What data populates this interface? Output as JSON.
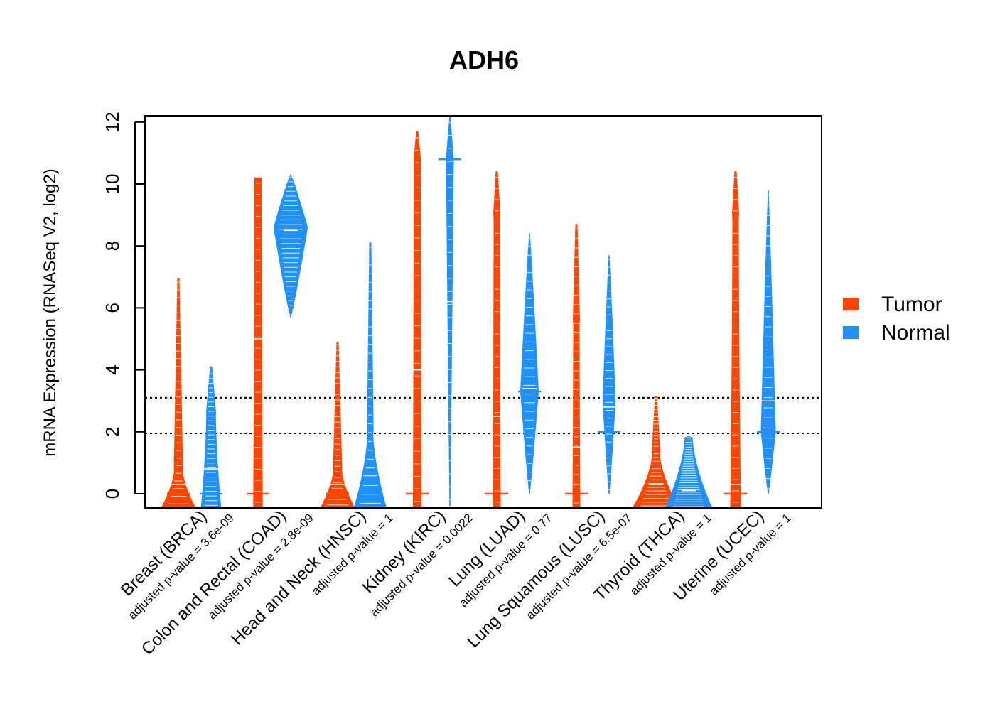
{
  "chart_data": {
    "type": "beanplot",
    "title": "ADH6",
    "xlabel": "",
    "ylabel": "mRNA Expression (RNASeq V2, log2)",
    "ylim": [
      -0.5,
      12.2
    ],
    "yticks": [
      0,
      2,
      4,
      6,
      8,
      10,
      12
    ],
    "grid": false,
    "legend_position": "right",
    "reference_lines": [
      1.95,
      3.1
    ],
    "series": [
      {
        "name": "Tumor",
        "color": "#FF4500"
      },
      {
        "name": "Normal",
        "color": "#1E90FF"
      }
    ],
    "groups": [
      {
        "label": "Breast (BRCA)",
        "pvalue_text": "adjusted p-value = 3.6e-09",
        "tumor": {
          "median": 0.0,
          "mean": 0.3,
          "max": 6.95,
          "bulk_top": 0.8,
          "bulk_width": 0.95,
          "tail_width": 0.22
        },
        "normal": {
          "median": 0.0,
          "mean": 0.8,
          "max": 4.1,
          "bulk_top": 2.6,
          "bulk_width": 0.55,
          "tail_width": 0.25
        }
      },
      {
        "label": "Colon and Rectal (COAD)",
        "pvalue_text": "adjusted p-value = 2.8e-09",
        "tumor": {
          "median": 0.0,
          "mean": 5.0,
          "max": 10.2,
          "bulk_top": 10.2,
          "bulk_width": 0.25,
          "tail_width": 0.18
        },
        "normal": {
          "median": 8.4,
          "mean": 8.5,
          "min": 5.7,
          "max": 10.3,
          "peak": 8.6,
          "bulk_width": 0.95
        }
      },
      {
        "label": "Head and Neck (HNSC)",
        "pvalue_text": "adjusted p-value = 1",
        "tumor": {
          "median": 0.0,
          "mean": 0.3,
          "max": 4.9,
          "bulk_top": 0.8,
          "bulk_width": 0.95,
          "tail_width": 0.22
        },
        "normal": {
          "median": 0.0,
          "mean": 0.6,
          "max": 8.1,
          "bulk_top": 2.0,
          "bulk_width": 0.9,
          "tail_width": 0.14
        }
      },
      {
        "label": "Kidney (KIRC)",
        "pvalue_text": "adjusted p-value = 0.0022",
        "tumor": {
          "median": 0.0,
          "mean": 4.0,
          "max": 11.7,
          "bulk_top": 10.7,
          "bulk_width": 0.22,
          "tail_width": 0.18
        },
        "normal": {
          "median": 10.8,
          "mean": 6.2,
          "min": -0.4,
          "max": 12.2,
          "peak": 10.8,
          "bulk_width": 0.2
        }
      },
      {
        "label": "Lung (LUAD)",
        "pvalue_text": "adjusted p-value = 0.77",
        "tumor": {
          "median": 0.0,
          "mean": 2.5,
          "max": 10.4,
          "bulk_top": 9.0,
          "bulk_width": 0.2,
          "tail_width": 0.16
        },
        "normal": {
          "median": 3.3,
          "mean": 3.4,
          "min": 0.0,
          "max": 8.4,
          "peak": 3.3,
          "bulk_width": 0.5
        }
      },
      {
        "label": "Lung Squamous (LUSC)",
        "pvalue_text": "adjusted p-value = 6.5e-07",
        "tumor": {
          "median": 0.0,
          "mean": 1.5,
          "max": 8.7,
          "bulk_top": 5.5,
          "bulk_width": 0.2,
          "tail_width": 0.16
        },
        "normal": {
          "median": 2.0,
          "mean": 2.8,
          "min": 0.0,
          "max": 7.7,
          "peak": 3.0,
          "bulk_width": 0.35
        }
      },
      {
        "label": "Thyroid (THCA)",
        "pvalue_text": "adjusted p-value = 1",
        "tumor": {
          "median": 0.0,
          "mean": 0.3,
          "max": 3.15,
          "bulk_top": 1.3,
          "bulk_width": 1.3,
          "tail_width": 0.2
        },
        "normal": {
          "median": 0.0,
          "mean": 0.1,
          "max": 1.85,
          "bulk_top": 1.85,
          "bulk_width": 1.3,
          "tail_width": 0.2
        }
      },
      {
        "label": "Uterine (UCEC)",
        "pvalue_text": "adjusted p-value = 1",
        "tumor": {
          "median": 0.0,
          "mean": 0.3,
          "max": 10.4,
          "bulk_top": 9.0,
          "bulk_width": 0.28,
          "tail_width": 0.16
        },
        "normal": {
          "median": 2.0,
          "mean": 3.0,
          "min": 0.0,
          "max": 9.8,
          "peak": 2.0,
          "bulk_width": 0.4
        }
      }
    ]
  }
}
